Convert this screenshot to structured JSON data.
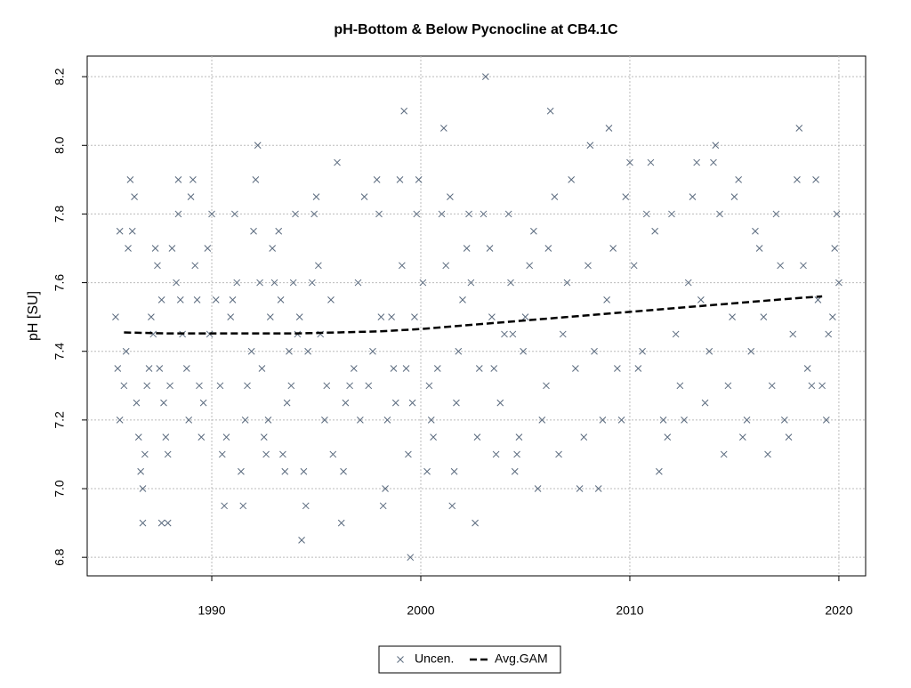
{
  "chart_data": {
    "type": "scatter",
    "title": "pH-Bottom & Below Pycnocline at CB4.1C",
    "y_label": "pH [SU]",
    "xlim": [
      1984.04,
      2021.28
    ],
    "xticks": [
      1990,
      2000,
      2010,
      2020
    ],
    "ylim": [
      6.746,
      8.26
    ],
    "yticks": [
      6.8,
      {
        "value": 7,
        "label": "7.0"
      },
      7.2,
      7.4,
      7.6,
      7.8,
      {
        "value": 8,
        "label": "8.0"
      },
      8.2
    ],
    "grid": true,
    "legend": "bottom",
    "series": [
      {
        "name": "Uncen.",
        "color": "#5a6a7e",
        "style": "marker",
        "x": [
          1985.4,
          1985.5,
          1985.6,
          1985.6,
          1985.8,
          1985.9,
          1986.0,
          1986.1,
          1986.2,
          1986.3,
          1986.4,
          1986.5,
          1986.6,
          1986.7,
          1986.7,
          1986.8,
          1986.9,
          1987.0,
          1987.1,
          1987.2,
          1987.3,
          1987.4,
          1987.5,
          1987.6,
          1987.6,
          1987.7,
          1987.8,
          1987.9,
          1987.9,
          1988.0,
          1988.1,
          1988.3,
          1988.4,
          1988.4,
          1988.5,
          1988.6,
          1988.8,
          1988.9,
          1989.0,
          1989.1,
          1989.2,
          1989.3,
          1989.4,
          1989.5,
          1989.6,
          1989.8,
          1989.9,
          1990.0,
          1990.2,
          1990.4,
          1990.5,
          1990.6,
          1990.7,
          1990.9,
          1991.0,
          1991.1,
          1991.2,
          1991.4,
          1991.5,
          1991.6,
          1991.7,
          1991.9,
          1992.0,
          1992.1,
          1992.2,
          1992.3,
          1992.4,
          1992.5,
          1992.6,
          1992.7,
          1992.8,
          1992.9,
          1993.0,
          1993.2,
          1993.3,
          1993.4,
          1993.5,
          1993.6,
          1993.7,
          1993.8,
          1993.9,
          1994.0,
          1994.1,
          1994.2,
          1994.3,
          1994.4,
          1994.5,
          1994.6,
          1994.8,
          1994.9,
          1995.0,
          1995.1,
          1995.2,
          1995.4,
          1995.5,
          1995.7,
          1995.8,
          1996.0,
          1996.2,
          1996.3,
          1996.4,
          1996.6,
          1996.8,
          1997.0,
          1997.1,
          1997.3,
          1997.5,
          1997.7,
          1997.9,
          1998.0,
          1998.1,
          1998.2,
          1998.3,
          1998.4,
          1998.6,
          1998.7,
          1998.8,
          1999.0,
          1999.1,
          1999.2,
          1999.3,
          1999.4,
          1999.5,
          1999.6,
          1999.7,
          1999.8,
          1999.9,
          2000.1,
          2000.3,
          2000.4,
          2000.5,
          2000.6,
          2000.8,
          2001.0,
          2001.1,
          2001.2,
          2001.4,
          2001.5,
          2001.6,
          2001.7,
          2001.8,
          2002.0,
          2002.2,
          2002.3,
          2002.4,
          2002.6,
          2002.7,
          2002.8,
          2003.0,
          2003.1,
          2003.3,
          2003.4,
          2003.5,
          2003.6,
          2003.8,
          2004.0,
          2004.2,
          2004.3,
          2004.4,
          2004.5,
          2004.6,
          2004.7,
          2004.9,
          2005.0,
          2005.2,
          2005.4,
          2005.6,
          2005.8,
          2006.0,
          2006.1,
          2006.2,
          2006.4,
          2006.6,
          2006.8,
          2007.0,
          2007.2,
          2007.4,
          2007.6,
          2007.8,
          2008.0,
          2008.1,
          2008.3,
          2008.5,
          2008.7,
          2008.9,
          2009.0,
          2009.2,
          2009.4,
          2009.6,
          2009.8,
          2010.0,
          2010.2,
          2010.4,
          2010.6,
          2010.8,
          2011.0,
          2011.2,
          2011.4,
          2011.6,
          2011.8,
          2012.0,
          2012.2,
          2012.4,
          2012.6,
          2012.8,
          2013.0,
          2013.2,
          2013.4,
          2013.6,
          2013.8,
          2014.0,
          2014.1,
          2014.3,
          2014.5,
          2014.7,
          2014.9,
          2015.0,
          2015.2,
          2015.4,
          2015.6,
          2015.8,
          2016.0,
          2016.2,
          2016.4,
          2016.6,
          2016.8,
          2017.0,
          2017.2,
          2017.4,
          2017.6,
          2017.8,
          2018.0,
          2018.1,
          2018.3,
          2018.5,
          2018.7,
          2018.9,
          2019.0,
          2019.2,
          2019.4,
          2019.5,
          2019.7,
          2019.8,
          2019.9,
          2020.0
        ],
        "values": [
          7.5,
          7.35,
          7.2,
          7.75,
          7.3,
          7.4,
          7.7,
          7.9,
          7.75,
          7.85,
          7.25,
          7.15,
          7.05,
          7.0,
          6.9,
          7.1,
          7.3,
          7.35,
          7.5,
          7.45,
          7.7,
          7.65,
          7.35,
          7.55,
          6.9,
          7.25,
          7.15,
          7.1,
          6.9,
          7.3,
          7.7,
          7.6,
          7.8,
          7.9,
          7.55,
          7.45,
          7.35,
          7.2,
          7.85,
          7.9,
          7.65,
          7.55,
          7.3,
          7.15,
          7.25,
          7.7,
          7.45,
          7.8,
          7.55,
          7.3,
          7.1,
          6.95,
          7.15,
          7.5,
          7.55,
          7.8,
          7.6,
          7.05,
          6.95,
          7.2,
          7.3,
          7.4,
          7.75,
          7.9,
          8.0,
          7.6,
          7.35,
          7.15,
          7.1,
          7.2,
          7.5,
          7.7,
          7.6,
          7.75,
          7.55,
          7.1,
          7.05,
          7.25,
          7.4,
          7.3,
          7.6,
          7.8,
          7.45,
          7.5,
          6.85,
          7.05,
          6.95,
          7.4,
          7.6,
          7.8,
          7.85,
          7.65,
          7.45,
          7.2,
          7.3,
          7.55,
          7.1,
          7.95,
          6.9,
          7.05,
          7.25,
          7.3,
          7.35,
          7.6,
          7.2,
          7.85,
          7.3,
          7.4,
          7.9,
          7.8,
          7.5,
          6.95,
          7.0,
          7.2,
          7.5,
          7.35,
          7.25,
          7.9,
          7.65,
          8.1,
          7.35,
          7.1,
          6.8,
          7.25,
          7.5,
          7.8,
          7.9,
          7.6,
          7.05,
          7.3,
          7.2,
          7.15,
          7.35,
          7.8,
          8.05,
          7.65,
          7.85,
          6.95,
          7.05,
          7.25,
          7.4,
          7.55,
          7.7,
          7.8,
          7.6,
          6.9,
          7.15,
          7.35,
          7.8,
          8.2,
          7.7,
          7.5,
          7.35,
          7.1,
          7.25,
          7.45,
          7.8,
          7.6,
          7.45,
          7.05,
          7.1,
          7.15,
          7.4,
          7.5,
          7.65,
          7.75,
          7.0,
          7.2,
          7.3,
          7.7,
          8.1,
          7.85,
          7.1,
          7.45,
          7.6,
          7.9,
          7.35,
          7.0,
          7.15,
          7.65,
          8.0,
          7.4,
          7.0,
          7.2,
          7.55,
          8.05,
          7.7,
          7.35,
          7.2,
          7.85,
          7.95,
          7.65,
          7.35,
          7.4,
          7.8,
          7.95,
          7.75,
          7.05,
          7.2,
          7.15,
          7.8,
          7.45,
          7.3,
          7.2,
          7.6,
          7.85,
          7.95,
          7.55,
          7.25,
          7.4,
          7.95,
          8.0,
          7.8,
          7.1,
          7.3,
          7.5,
          7.85,
          7.9,
          7.15,
          7.2,
          7.4,
          7.75,
          7.7,
          7.5,
          7.1,
          7.3,
          7.8,
          7.65,
          7.2,
          7.15,
          7.45,
          7.9,
          8.05,
          7.65,
          7.35,
          7.3,
          7.9,
          7.55,
          7.3,
          7.2,
          7.45,
          7.5,
          7.7,
          7.8,
          7.6
        ]
      },
      {
        "name": "Avg.GAM",
        "color": "#000000",
        "style": "dashed-line",
        "x": [
          1985.8,
          1988,
          1990,
          1992,
          1994,
          1996,
          1998,
          2000,
          2002,
          2004,
          2006,
          2008,
          2010,
          2012,
          2014,
          2016,
          2018,
          2019.2
        ],
        "values": [
          7.455,
          7.452,
          7.452,
          7.452,
          7.452,
          7.455,
          7.458,
          7.465,
          7.475,
          7.485,
          7.495,
          7.505,
          7.515,
          7.525,
          7.535,
          7.545,
          7.555,
          7.56
        ]
      }
    ]
  }
}
